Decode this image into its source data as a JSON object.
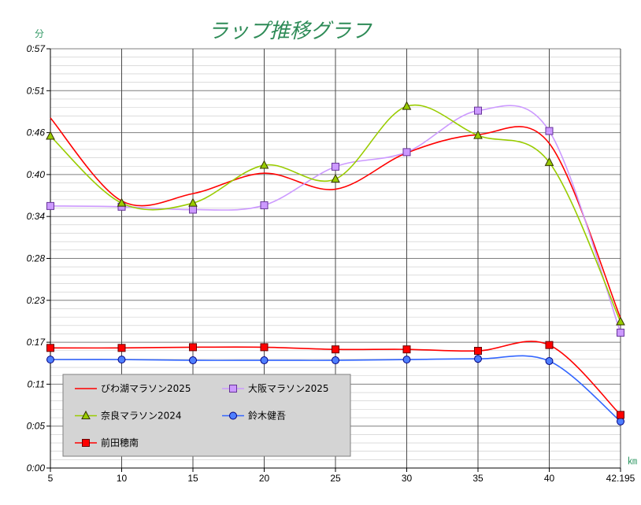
{
  "chart_data": {
    "type": "line",
    "title": "ラップ推移グラフ",
    "ylabel": "分",
    "xlabel": "㎞",
    "categories": [
      "5",
      "10",
      "15",
      "20",
      "25",
      "30",
      "35",
      "40",
      "42.195"
    ],
    "yticks": [
      "0:00",
      "0:05",
      "0:11",
      "0:17",
      "0:23",
      "0:28",
      "0:34",
      "0:40",
      "0:46",
      "0:51",
      "0:57"
    ],
    "ylim": [
      "0:00:00",
      "0:57:36"
    ],
    "smooth": true,
    "grid": {
      "major": true,
      "minor": true
    },
    "legend_position": "bottom-left",
    "legend_background": "#d4d4d4",
    "series": [
      {
        "name": "びわ湖マラソン2025",
        "color": "#ff0000",
        "marker": "none",
        "marker_fill": "#ff0000",
        "marker_stroke": "#ff0000",
        "values": [
          "0:48:06",
          "0:36:42",
          "0:37:42",
          "0:40:30",
          "0:38:18",
          "0:43:18",
          "0:45:48",
          "0:44:36",
          "0:20:36"
        ]
      },
      {
        "name": "大阪マラソン2025",
        "color": "#cc99ff",
        "marker": "square",
        "marker_fill": "#cc99ff",
        "marker_stroke": "#663399",
        "values": [
          "0:36:00",
          "0:35:54",
          "0:35:30",
          "0:36:06",
          "0:41:24",
          "0:43:24",
          "0:49:06",
          "0:46:18",
          "0:18:36"
        ]
      },
      {
        "name": "奈良マラソン2024",
        "color": "#99cc00",
        "marker": "triangle",
        "marker_fill": "#99cc00",
        "marker_stroke": "#333300",
        "values": [
          "0:45:36",
          "0:36:24",
          "0:36:24",
          "0:41:36",
          "0:39:42",
          "0:49:42",
          "0:45:42",
          "0:42:00",
          "0:20:06"
        ]
      },
      {
        "name": "鈴木健吾",
        "color": "#3366ff",
        "marker": "circle",
        "marker_fill": "#4f7fff",
        "marker_stroke": "#000080",
        "values": [
          "0:14:54",
          "0:14:54",
          "0:14:48",
          "0:14:48",
          "0:14:48",
          "0:14:54",
          "0:15:00",
          "0:14:42",
          "0:06:24"
        ]
      },
      {
        "name": "前田穂南",
        "color": "#ff0000",
        "marker": "square",
        "marker_fill": "#ff0000",
        "marker_stroke": "#660000",
        "values": [
          "0:16:30",
          "0:16:30",
          "0:16:36",
          "0:16:36",
          "0:16:18",
          "0:16:18",
          "0:16:06",
          "0:16:54",
          "0:07:18"
        ]
      }
    ]
  }
}
